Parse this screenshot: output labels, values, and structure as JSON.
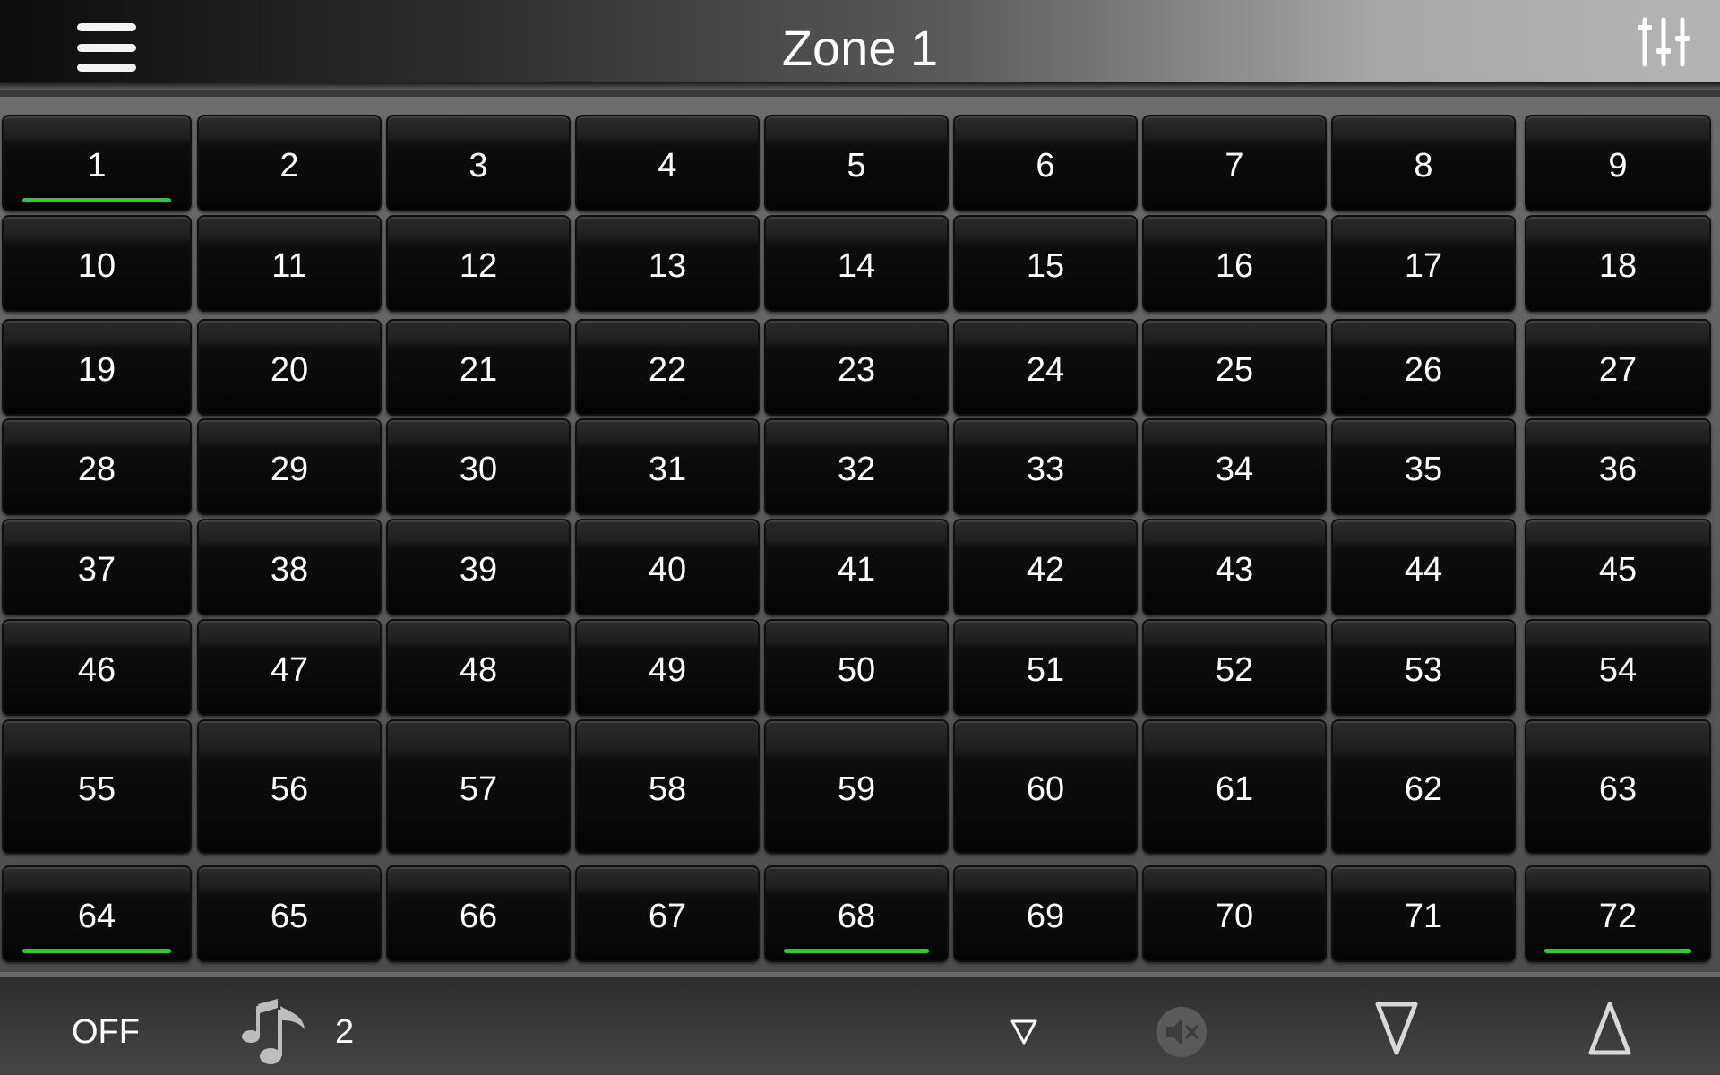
{
  "header": {
    "title": "Zone 1",
    "menu_icon": "hamburger-menu-icon",
    "settings_icon": "sliders-settings-icon"
  },
  "presets": [
    {
      "label": "1",
      "active": true
    },
    {
      "label": "2",
      "active": false
    },
    {
      "label": "3",
      "active": false
    },
    {
      "label": "4",
      "active": false
    },
    {
      "label": "5",
      "active": false
    },
    {
      "label": "6",
      "active": false
    },
    {
      "label": "7",
      "active": false
    },
    {
      "label": "8",
      "active": false
    },
    {
      "label": "9",
      "active": false
    },
    {
      "label": "10",
      "active": false
    },
    {
      "label": "11",
      "active": false
    },
    {
      "label": "12",
      "active": false
    },
    {
      "label": "13",
      "active": false
    },
    {
      "label": "14",
      "active": false
    },
    {
      "label": "15",
      "active": false
    },
    {
      "label": "16",
      "active": false
    },
    {
      "label": "17",
      "active": false
    },
    {
      "label": "18",
      "active": false
    },
    {
      "label": "19",
      "active": false
    },
    {
      "label": "20",
      "active": false
    },
    {
      "label": "21",
      "active": false
    },
    {
      "label": "22",
      "active": false
    },
    {
      "label": "23",
      "active": false
    },
    {
      "label": "24",
      "active": false
    },
    {
      "label": "25",
      "active": false
    },
    {
      "label": "26",
      "active": false
    },
    {
      "label": "27",
      "active": false
    },
    {
      "label": "28",
      "active": false
    },
    {
      "label": "29",
      "active": false
    },
    {
      "label": "30",
      "active": false
    },
    {
      "label": "31",
      "active": false
    },
    {
      "label": "32",
      "active": false
    },
    {
      "label": "33",
      "active": false
    },
    {
      "label": "34",
      "active": false
    },
    {
      "label": "35",
      "active": false
    },
    {
      "label": "36",
      "active": false
    },
    {
      "label": "37",
      "active": false
    },
    {
      "label": "38",
      "active": false
    },
    {
      "label": "39",
      "active": false
    },
    {
      "label": "40",
      "active": false
    },
    {
      "label": "41",
      "active": false
    },
    {
      "label": "42",
      "active": false
    },
    {
      "label": "43",
      "active": false
    },
    {
      "label": "44",
      "active": false
    },
    {
      "label": "45",
      "active": false
    },
    {
      "label": "46",
      "active": false
    },
    {
      "label": "47",
      "active": false
    },
    {
      "label": "48",
      "active": false
    },
    {
      "label": "49",
      "active": false
    },
    {
      "label": "50",
      "active": false
    },
    {
      "label": "51",
      "active": false
    },
    {
      "label": "52",
      "active": false
    },
    {
      "label": "53",
      "active": false
    },
    {
      "label": "54",
      "active": false
    },
    {
      "label": "55",
      "active": false
    },
    {
      "label": "56",
      "active": false
    },
    {
      "label": "57",
      "active": false
    },
    {
      "label": "58",
      "active": false
    },
    {
      "label": "59",
      "active": false
    },
    {
      "label": "60",
      "active": false
    },
    {
      "label": "61",
      "active": false
    },
    {
      "label": "62",
      "active": false
    },
    {
      "label": "63",
      "active": false
    },
    {
      "label": "64",
      "active": true
    },
    {
      "label": "65",
      "active": false
    },
    {
      "label": "66",
      "active": false
    },
    {
      "label": "67",
      "active": false
    },
    {
      "label": "68",
      "active": true
    },
    {
      "label": "69",
      "active": false
    },
    {
      "label": "70",
      "active": false
    },
    {
      "label": "71",
      "active": false
    },
    {
      "label": "72",
      "active": true
    }
  ],
  "bottom": {
    "power_label": "OFF",
    "source_icon": "music-notes-icon",
    "source_number": "2",
    "small_down_icon": "triangle-down-small-icon",
    "mute_icon": "speaker-mute-icon",
    "volume_down_icon": "triangle-down-large-icon",
    "volume_up_icon": "triangle-up-large-icon"
  },
  "colors": {
    "active_indicator": "#1ed61e",
    "button_text": "#ffffff"
  }
}
